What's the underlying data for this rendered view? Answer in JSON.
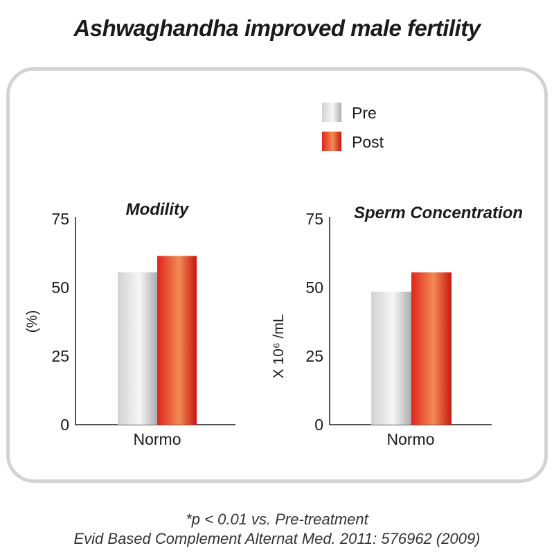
{
  "title": "Ashwaghandha improved male fertility",
  "legend": [
    {
      "label": "Pre",
      "color": "#c8c8c8"
    },
    {
      "label": "Post",
      "color": "#e02a1e"
    }
  ],
  "footnotes": {
    "line1": "*p < 0.01 vs. Pre-treatment",
    "line2": "Evid Based Complement Alternat Med. 2011: 576962 (2009)"
  },
  "chart_data": [
    {
      "type": "bar",
      "title": "Modility",
      "ylabel": "(%)",
      "categories": [
        "Normo"
      ],
      "ylim": [
        0,
        75
      ],
      "yticks": [
        "0",
        "25",
        "50",
        "75"
      ],
      "series": [
        {
          "name": "Pre",
          "values": [
            55.5
          ]
        },
        {
          "name": "Post",
          "values": [
            61.5
          ]
        }
      ]
    },
    {
      "type": "bar",
      "title": "Sperm Concentration",
      "ylabel": "X 10⁶ /mL",
      "categories": [
        "Normo"
      ],
      "ylim": [
        0,
        75
      ],
      "yticks": [
        "0",
        "25",
        "50",
        "75"
      ],
      "series": [
        {
          "name": "Pre",
          "values": [
            48.5
          ]
        },
        {
          "name": "Post",
          "values": [
            55.5
          ]
        }
      ]
    }
  ]
}
